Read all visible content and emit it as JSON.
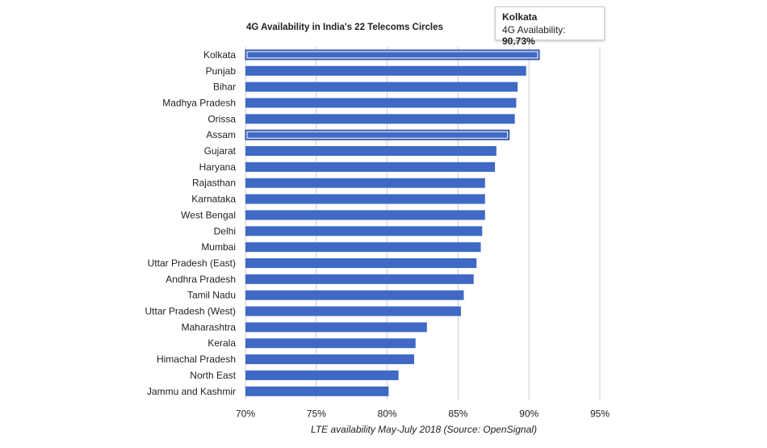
{
  "colors": {
    "bar": "#3f69c5",
    "bar_highlight": "#3f69c5",
    "gridline": "#cccccc",
    "text": "#222222"
  },
  "tooltip": {
    "title": "Kolkata",
    "label": "4G Availability:",
    "value": "90.73%"
  },
  "chart_data": {
    "type": "bar",
    "orientation": "horizontal",
    "title": "4G Availability in India's 22 Telecoms Circles",
    "xlabel": "LTE availability May-July 2018 (Source: OpenSignal)",
    "ylabel": "",
    "xlim": [
      70,
      95
    ],
    "xticks": [
      70,
      75,
      80,
      85,
      90,
      95
    ],
    "xtick_labels": [
      "70%",
      "75%",
      "80%",
      "85%",
      "90%",
      "95%"
    ],
    "grid": true,
    "categories": [
      "Kolkata",
      "Punjab",
      "Bihar",
      "Madhya Pradesh",
      "Orissa",
      "Assam",
      "Gujarat",
      "Haryana",
      "Rajasthan",
      "Karnataka",
      "West Bengal",
      "Delhi",
      "Mumbai",
      "Uttar Pradesh (East)",
      "Andhra Pradesh",
      "Tamil Nadu",
      "Uttar Pradesh (West)",
      "Maharashtra",
      "Kerala",
      "Himachal Pradesh",
      "North East",
      "Jammu and Kashmir"
    ],
    "values": [
      90.73,
      89.8,
      89.2,
      89.1,
      89.0,
      88.6,
      87.7,
      87.6,
      86.9,
      86.9,
      86.9,
      86.7,
      86.6,
      86.3,
      86.1,
      85.4,
      85.2,
      82.8,
      82.0,
      81.9,
      80.8,
      80.1
    ],
    "highlighted": [
      "Kolkata",
      "Assam"
    ]
  }
}
